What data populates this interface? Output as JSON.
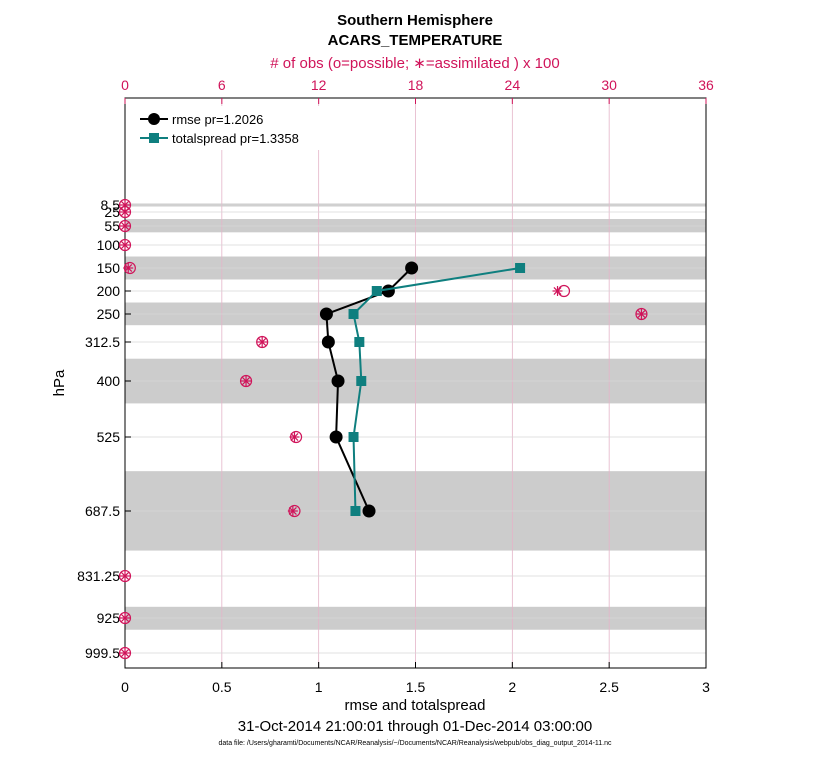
{
  "chart_data": {
    "type": "line",
    "title": "Southern Hemisphere",
    "subtitle": "ACARS_TEMPERATURE",
    "xlabel": "rmse and totalspread",
    "ylabel": "hPa",
    "top_xlabel": "# of obs (o=possible; ∗=assimilated ) x 100",
    "date_range": "31-Oct-2014 21:00:01 through 01-Dec-2014 03:00:00",
    "footnote": "data file: /Users/gharamti/Documents/NCAR/Reanalysis/~/Documents/NCAR/Reanalysis/webpub/obs_diag_output_2014-11.nc",
    "xlim": [
      0,
      3
    ],
    "xticks": [
      "0",
      "0.5",
      "1",
      "1.5",
      "2",
      "2.5",
      "3"
    ],
    "xtick_values": [
      0,
      0.5,
      1,
      1.5,
      2,
      2.5,
      3
    ],
    "top_xlim": [
      0,
      36
    ],
    "top_xticks": [
      "0",
      "6",
      "12",
      "18",
      "24",
      "30",
      "36"
    ],
    "top_xtick_values": [
      0,
      6,
      12,
      18,
      24,
      30,
      36
    ],
    "levels": [
      8.5,
      25,
      55,
      100,
      150,
      200,
      250,
      312.5,
      400,
      525,
      687.5,
      831.25,
      925,
      999.5
    ],
    "level_labels": [
      "8.5",
      "25",
      "55",
      "100",
      "150",
      "200",
      "250",
      "312.5",
      "400",
      "525",
      "687.5",
      "831.25",
      "925",
      "999.5"
    ],
    "shaded_layers": [
      [
        5,
        12
      ],
      [
        40,
        70
      ],
      [
        125,
        175
      ],
      [
        225,
        275
      ],
      [
        350,
        450
      ],
      [
        600,
        775
      ],
      [
        900,
        950
      ]
    ],
    "series": [
      {
        "name": "rmse",
        "legend": "rmse pr=1.2026",
        "color": "#000000",
        "marker": "circle",
        "points": [
          [
            1.48,
            150
          ],
          [
            1.36,
            200
          ],
          [
            1.04,
            250
          ],
          [
            1.05,
            312.5
          ],
          [
            1.1,
            400
          ],
          [
            1.09,
            525
          ],
          [
            1.26,
            687.5
          ]
        ]
      },
      {
        "name": "totalspread",
        "legend": "totalspread pr=1.3358",
        "color": "#0f7f7f",
        "marker": "square",
        "points": [
          [
            2.04,
            150
          ],
          [
            1.3,
            200
          ],
          [
            1.18,
            250
          ],
          [
            1.21,
            312.5
          ],
          [
            1.22,
            400
          ],
          [
            1.18,
            525
          ],
          [
            1.19,
            687.5
          ]
        ]
      }
    ],
    "obs_counts": {
      "units": "x 100",
      "color": "#d0145a",
      "points": [
        {
          "level": 8.5,
          "possible": 0,
          "assimilated": 0
        },
        {
          "level": 25,
          "possible": 0,
          "assimilated": 0
        },
        {
          "level": 55,
          "possible": 0,
          "assimilated": 0
        },
        {
          "level": 100,
          "possible": 0,
          "assimilated": 0
        },
        {
          "level": 150,
          "possible": 0.3,
          "assimilated": 0.2
        },
        {
          "level": 200,
          "possible": 27.2,
          "assimilated": 26.8
        },
        {
          "level": 250,
          "possible": 32.0,
          "assimilated": 32.0
        },
        {
          "level": 312.5,
          "possible": 8.5,
          "assimilated": 8.5
        },
        {
          "level": 400,
          "possible": 7.5,
          "assimilated": 7.5
        },
        {
          "level": 525,
          "possible": 10.6,
          "assimilated": 10.5
        },
        {
          "level": 687.5,
          "possible": 10.5,
          "assimilated": 10.4
        },
        {
          "level": 831.25,
          "possible": 0,
          "assimilated": 0
        },
        {
          "level": 925,
          "possible": 0,
          "assimilated": 0
        },
        {
          "level": 999.5,
          "possible": 0,
          "assimilated": 0
        }
      ]
    }
  }
}
